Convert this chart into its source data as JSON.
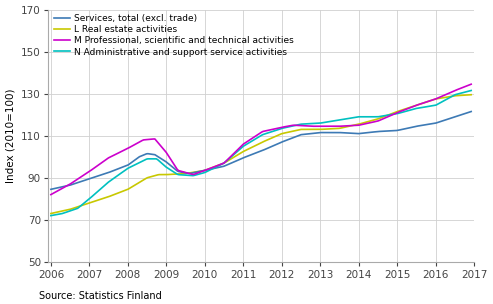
{
  "ylabel": "Index (2010=100)",
  "source": "Source: Statistics Finland",
  "ylim": [
    50,
    170
  ],
  "yticks": [
    50,
    70,
    90,
    110,
    130,
    150,
    170
  ],
  "xlim": [
    2005.92,
    2017.0
  ],
  "xticks": [
    2006,
    2007,
    2008,
    2009,
    2010,
    2011,
    2012,
    2013,
    2014,
    2015,
    2016,
    2017
  ],
  "legend_labels": [
    "Services, total (excl. trade)",
    "L Real estate activities",
    "M Professional, scientific and technical activities",
    "N Administrative and support service activities"
  ],
  "colors": [
    "#3d7ab5",
    "#c8c800",
    "#cc00cc",
    "#00c0c0"
  ],
  "linewidth": 1.2,
  "kx_s": [
    2006.0,
    2006.5,
    2007.0,
    2007.5,
    2008.0,
    2008.3,
    2008.5,
    2008.7,
    2009.0,
    2009.3,
    2009.6,
    2010.0,
    2010.5,
    2011.0,
    2011.5,
    2012.0,
    2012.5,
    2013.0,
    2013.5,
    2014.0,
    2014.5,
    2015.0,
    2015.5,
    2016.0,
    2016.5,
    2016.92
  ],
  "ky_s": [
    84.5,
    86.5,
    89.5,
    92.5,
    96.0,
    100.0,
    101.5,
    101.0,
    97.5,
    93.0,
    92.0,
    93.5,
    95.5,
    99.5,
    103.0,
    107.0,
    110.5,
    111.5,
    111.5,
    111.0,
    112.0,
    112.5,
    114.5,
    116.0,
    119.0,
    121.5
  ],
  "kx_r": [
    2006.0,
    2006.5,
    2007.0,
    2007.5,
    2008.0,
    2008.5,
    2008.8,
    2009.0,
    2009.5,
    2010.0,
    2010.5,
    2011.0,
    2011.5,
    2012.0,
    2012.5,
    2013.0,
    2013.5,
    2014.0,
    2014.5,
    2015.0,
    2015.5,
    2016.0,
    2016.5,
    2016.92
  ],
  "ky_r": [
    73.0,
    75.0,
    78.0,
    81.0,
    84.5,
    90.0,
    91.5,
    91.5,
    92.0,
    93.5,
    97.0,
    102.5,
    107.0,
    111.0,
    113.0,
    113.0,
    113.5,
    115.5,
    118.0,
    121.5,
    124.5,
    127.5,
    129.0,
    129.5
  ],
  "kx_p": [
    2006.0,
    2006.5,
    2007.0,
    2007.5,
    2008.0,
    2008.4,
    2008.7,
    2009.0,
    2009.3,
    2009.7,
    2010.0,
    2010.5,
    2011.0,
    2011.5,
    2012.0,
    2012.3,
    2012.8,
    2013.0,
    2013.5,
    2014.0,
    2014.5,
    2015.0,
    2015.5,
    2016.0,
    2016.5,
    2016.92
  ],
  "ky_p": [
    82.0,
    87.0,
    93.0,
    99.5,
    104.0,
    108.0,
    108.5,
    102.0,
    93.5,
    91.5,
    93.5,
    97.0,
    106.0,
    112.0,
    114.0,
    115.0,
    114.5,
    114.5,
    114.5,
    115.0,
    117.0,
    121.0,
    124.5,
    127.5,
    131.5,
    134.5
  ],
  "kx_a": [
    2006.0,
    2006.3,
    2006.7,
    2007.0,
    2007.5,
    2008.0,
    2008.5,
    2008.75,
    2009.0,
    2009.3,
    2009.7,
    2010.0,
    2010.5,
    2011.0,
    2011.5,
    2012.0,
    2012.5,
    2013.0,
    2013.5,
    2014.0,
    2014.5,
    2015.0,
    2015.5,
    2016.0,
    2016.5,
    2016.92
  ],
  "ky_a": [
    72.0,
    73.0,
    75.5,
    80.0,
    88.0,
    94.5,
    99.0,
    99.0,
    95.0,
    91.5,
    91.0,
    92.5,
    97.0,
    105.0,
    110.5,
    113.5,
    115.5,
    116.0,
    117.5,
    119.0,
    119.0,
    120.5,
    123.0,
    124.5,
    129.5,
    131.5
  ]
}
